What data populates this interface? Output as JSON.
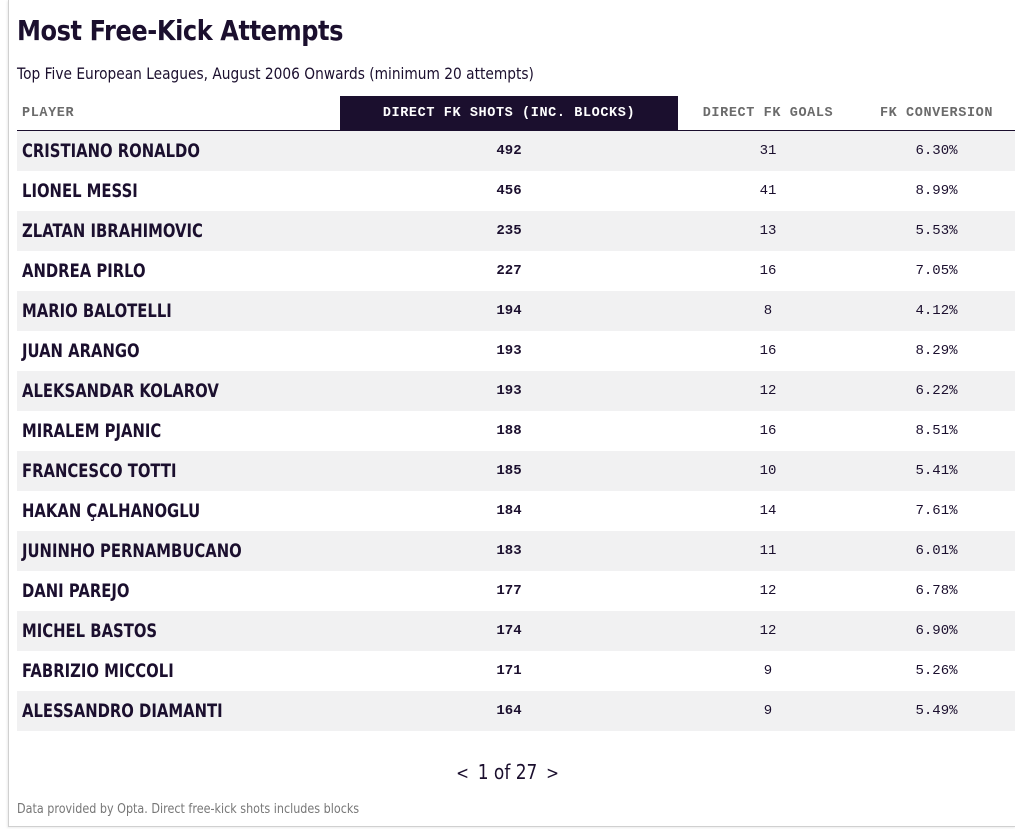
{
  "title": "Most Free-Kick Attempts",
  "subtitle": "Top Five European Leagues, August 2006 Onwards (minimum 20 attempts)",
  "columns": {
    "player": "PLAYER",
    "shots": "DIRECT FK SHOTS (INC. BLOCKS)",
    "goals": "DIRECT FK GOALS",
    "conversion": "FK CONVERSION"
  },
  "colors": {
    "header_accent": "#1b0f2e",
    "stripe": "#f1f1f2",
    "text": "#1b0f2e"
  },
  "chart_data": {
    "type": "table",
    "title": "Most Free-Kick Attempts",
    "subtitle": "Top Five European Leagues, August 2006 Onwards (minimum 20 attempts)",
    "columns": [
      "PLAYER",
      "DIRECT FK SHOTS (INC. BLOCKS)",
      "DIRECT FK GOALS",
      "FK CONVERSION"
    ],
    "sorted_column": "DIRECT FK SHOTS (INC. BLOCKS)",
    "rows": [
      {
        "player": "CRISTIANO RONALDO",
        "shots": "492",
        "goals": "31",
        "conversion": "6.30%"
      },
      {
        "player": "LIONEL MESSI",
        "shots": "456",
        "goals": "41",
        "conversion": "8.99%"
      },
      {
        "player": "ZLATAN IBRAHIMOVIC",
        "shots": "235",
        "goals": "13",
        "conversion": "5.53%"
      },
      {
        "player": "ANDREA PIRLO",
        "shots": "227",
        "goals": "16",
        "conversion": "7.05%"
      },
      {
        "player": "MARIO BALOTELLI",
        "shots": "194",
        "goals": "8",
        "conversion": "4.12%"
      },
      {
        "player": "JUAN ARANGO",
        "shots": "193",
        "goals": "16",
        "conversion": "8.29%"
      },
      {
        "player": "ALEKSANDAR KOLAROV",
        "shots": "193",
        "goals": "12",
        "conversion": "6.22%"
      },
      {
        "player": "MIRALEM PJANIC",
        "shots": "188",
        "goals": "16",
        "conversion": "8.51%"
      },
      {
        "player": "FRANCESCO TOTTI",
        "shots": "185",
        "goals": "10",
        "conversion": "5.41%"
      },
      {
        "player": "HAKAN ÇALHANOGLU",
        "shots": "184",
        "goals": "14",
        "conversion": "7.61%"
      },
      {
        "player": "JUNINHO PERNAMBUCANO",
        "shots": "183",
        "goals": "11",
        "conversion": "6.01%"
      },
      {
        "player": "DANI PAREJO",
        "shots": "177",
        "goals": "12",
        "conversion": "6.78%"
      },
      {
        "player": "MICHEL BASTOS",
        "shots": "174",
        "goals": "12",
        "conversion": "6.90%"
      },
      {
        "player": "FABRIZIO MICCOLI",
        "shots": "171",
        "goals": "9",
        "conversion": "5.26%"
      },
      {
        "player": "ALESSANDRO DIAMANTI",
        "shots": "164",
        "goals": "9",
        "conversion": "5.49%"
      }
    ]
  },
  "pagination": {
    "prev": "<",
    "text": "1 of 27",
    "next": ">"
  },
  "footnote": "Data provided by Opta. Direct free-kick shots includes blocks"
}
